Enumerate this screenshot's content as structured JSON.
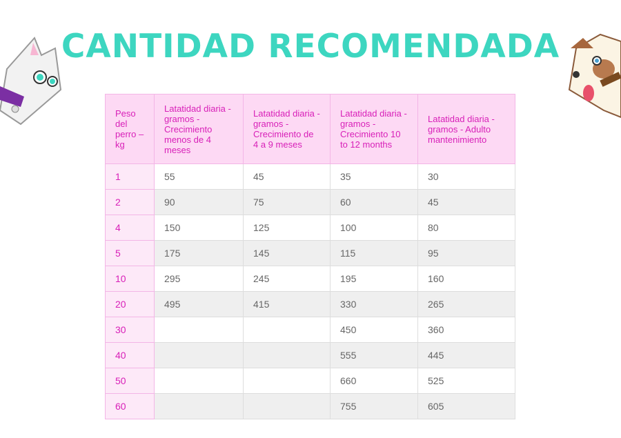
{
  "header": {
    "title": "CANTIDAD RECOMENDADA"
  },
  "table": {
    "columns": [
      "Peso del perro – kg",
      "Latatidad diaria - gramos - Crecimiento menos de 4 meses",
      "Latatidad diaria - gramos - Crecimiento de 4 a 9 meses",
      "Latatidad diaria - gramos - Crecimiento 10 to 12 months",
      "Latatidad diaria - gramos - Adulto mantenimiento"
    ],
    "rows": [
      [
        1,
        55,
        45,
        35,
        30
      ],
      [
        2,
        90,
        75,
        60,
        45
      ],
      [
        4,
        150,
        125,
        100,
        80
      ],
      [
        5,
        175,
        145,
        115,
        95
      ],
      [
        10,
        295,
        245,
        195,
        160
      ],
      [
        20,
        495,
        415,
        330,
        265
      ],
      [
        30,
        null,
        null,
        450,
        360
      ],
      [
        40,
        null,
        null,
        555,
        445
      ],
      [
        50,
        null,
        null,
        660,
        525
      ],
      [
        60,
        null,
        null,
        755,
        605
      ]
    ]
  }
}
